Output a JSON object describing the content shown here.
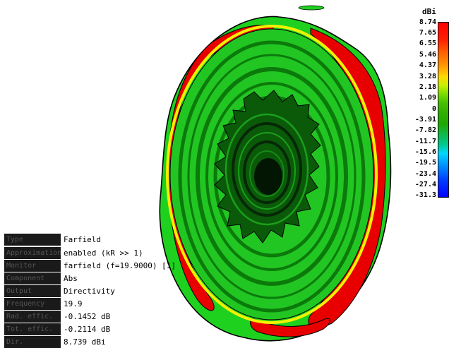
{
  "colorbar": {
    "unit": "dBi",
    "ticks": [
      "8.74",
      "7.65",
      "6.55",
      "5.46",
      "4.37",
      "3.28",
      "2.18",
      "1.09",
      "0",
      "-3.91",
      "-7.82",
      "-11.7",
      "-15.6",
      "-19.5",
      "-23.4",
      "-27.4",
      "-31.3"
    ]
  },
  "info": {
    "rows": [
      {
        "key": "Type",
        "value": "Farfield"
      },
      {
        "key": "Approximation",
        "value": "enabled (kR >> 1)"
      },
      {
        "key": "Monitor",
        "value": "farfield (f=19.9000) [1]"
      },
      {
        "key": "Component",
        "value": "Abs"
      },
      {
        "key": "Output",
        "value": "Directivity"
      },
      {
        "key": "Frequency",
        "value": "19.9"
      },
      {
        "key": "Rad. effic.",
        "value": "-0.1452 dB"
      },
      {
        "key": "Tot. effic.",
        "value": "-0.2114 dB"
      },
      {
        "key": "Dir.",
        "value": "8.739 dBi"
      }
    ]
  },
  "colors": {
    "outer_green": "#1fd11f",
    "ring_red": "#e80000",
    "ring_yellow": "#f2f200",
    "dark_band": "#0b7a0b",
    "center_dark": "#062806"
  }
}
